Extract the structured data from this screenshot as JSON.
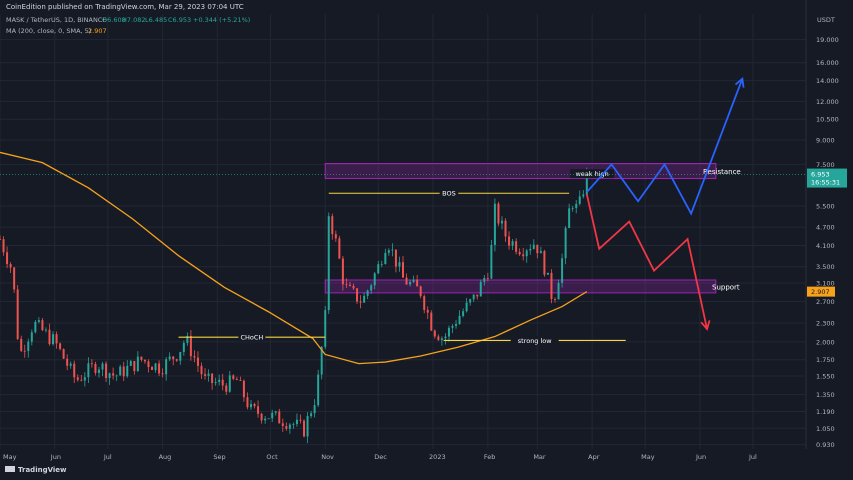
{
  "header": {
    "published_line": "CoinEdition published on TradingView.com, Mar 29, 2023 07:04 UTC",
    "symbol_line": {
      "pair": "MASK / TetherUS, 1D, BINANCE",
      "open": "O6.608",
      "high": "H7.082",
      "low": "L6.485",
      "close": "C6.953",
      "change": "+0.344 (+5.21%)"
    },
    "ma_line": {
      "label": "MA (200, close, 0, SMA, 5)",
      "value": "2.907"
    }
  },
  "footer": {
    "brand": "TradingView"
  },
  "colors": {
    "background": "#161a25",
    "up_candle": "#26a69a",
    "down_candle": "#ef5350",
    "ma_line": "#f7a21b",
    "level_line": "#f5d53c",
    "zone": "#9c27b0",
    "projection_up": "#2962ff",
    "projection_down": "#f23645",
    "price_tag": "#26a69a"
  },
  "chart_data": {
    "type": "candlestick",
    "y_axis": {
      "unit": "USDT",
      "scale": "log",
      "ticks": [
        "19.000",
        "16.000",
        "14.000",
        "12.000",
        "10.500",
        "9.000",
        "7.500",
        "6.953",
        "5.500",
        "4.700",
        "4.100",
        "3.500",
        "3.100",
        "2.907",
        "2.700",
        "2.300",
        "2.000",
        "1.750",
        "1.550",
        "1.350",
        "1.190",
        "1.050",
        "0.930"
      ],
      "range": [
        0.9,
        23.0
      ]
    },
    "x_axis": {
      "ticks": [
        "May",
        "Jun",
        "Jul",
        "Aug",
        "Sep",
        "Oct",
        "Nov",
        "Dec",
        "2023",
        "Feb",
        "Mar",
        "Apr",
        "May",
        "Jun",
        "Jul"
      ],
      "start": "2022-05-01",
      "end": "2023-07-31"
    },
    "price_tag": {
      "value": "6.953",
      "countdown": "16:55:31"
    },
    "ma_tag": {
      "value": "2.907"
    },
    "ma_200": [
      {
        "date": "2022-05-01",
        "value": 8.2
      },
      {
        "date": "2022-05-25",
        "value": 7.6
      },
      {
        "date": "2022-06-20",
        "value": 6.3
      },
      {
        "date": "2022-07-15",
        "value": 5.0
      },
      {
        "date": "2022-08-10",
        "value": 3.8
      },
      {
        "date": "2022-09-05",
        "value": 3.0
      },
      {
        "date": "2022-09-30",
        "value": 2.5
      },
      {
        "date": "2022-10-25",
        "value": 2.05
      },
      {
        "date": "2022-11-01",
        "value": 1.82
      },
      {
        "date": "2022-11-20",
        "value": 1.7
      },
      {
        "date": "2022-12-05",
        "value": 1.72
      },
      {
        "date": "2022-12-25",
        "value": 1.8
      },
      {
        "date": "2023-01-15",
        "value": 1.92
      },
      {
        "date": "2023-02-05",
        "value": 2.08
      },
      {
        "date": "2023-02-25",
        "value": 2.35
      },
      {
        "date": "2023-03-15",
        "value": 2.6
      },
      {
        "date": "2023-03-29",
        "value": 2.907
      }
    ],
    "close_path": [
      {
        "date": "2022-05-01",
        "value": 4.3
      },
      {
        "date": "2022-05-08",
        "value": 3.4
      },
      {
        "date": "2022-05-12",
        "value": 1.8
      },
      {
        "date": "2022-05-20",
        "value": 2.3
      },
      {
        "date": "2022-06-01",
        "value": 2.0
      },
      {
        "date": "2022-06-13",
        "value": 1.5
      },
      {
        "date": "2022-06-25",
        "value": 1.7
      },
      {
        "date": "2022-07-05",
        "value": 1.55
      },
      {
        "date": "2022-07-20",
        "value": 1.75
      },
      {
        "date": "2022-07-31",
        "value": 1.65
      },
      {
        "date": "2022-08-10",
        "value": 1.85
      },
      {
        "date": "2022-08-14",
        "value": 2.05
      },
      {
        "date": "2022-08-25",
        "value": 1.5
      },
      {
        "date": "2022-09-05",
        "value": 1.45
      },
      {
        "date": "2022-09-12",
        "value": 1.5
      },
      {
        "date": "2022-09-20",
        "value": 1.2
      },
      {
        "date": "2022-10-01",
        "value": 1.15
      },
      {
        "date": "2022-10-12",
        "value": 1.1
      },
      {
        "date": "2022-10-20",
        "value": 1.04
      },
      {
        "date": "2022-10-27",
        "value": 1.35
      },
      {
        "date": "2022-11-01",
        "value": 2.4
      },
      {
        "date": "2022-11-03",
        "value": 5.2
      },
      {
        "date": "2022-11-07",
        "value": 4.2
      },
      {
        "date": "2022-11-12",
        "value": 3.0
      },
      {
        "date": "2022-11-22",
        "value": 2.7
      },
      {
        "date": "2022-12-01",
        "value": 3.5
      },
      {
        "date": "2022-12-06",
        "value": 4.3
      },
      {
        "date": "2022-12-15",
        "value": 3.2
      },
      {
        "date": "2022-12-25",
        "value": 2.9
      },
      {
        "date": "2023-01-01",
        "value": 2.2
      },
      {
        "date": "2023-01-07",
        "value": 2.05
      },
      {
        "date": "2023-01-15",
        "value": 2.4
      },
      {
        "date": "2023-01-25",
        "value": 2.8
      },
      {
        "date": "2023-02-02",
        "value": 3.5
      },
      {
        "date": "2023-02-05",
        "value": 5.3
      },
      {
        "date": "2023-02-12",
        "value": 4.3
      },
      {
        "date": "2023-02-20",
        "value": 4.0
      },
      {
        "date": "2023-02-28",
        "value": 4.2
      },
      {
        "date": "2023-03-05",
        "value": 3.5
      },
      {
        "date": "2023-03-10",
        "value": 2.7
      },
      {
        "date": "2023-03-15",
        "value": 3.7
      },
      {
        "date": "2023-03-20",
        "value": 5.8
      },
      {
        "date": "2023-03-24",
        "value": 5.3
      },
      {
        "date": "2023-03-29",
        "value": 6.953
      }
    ],
    "annotations": [
      {
        "type": "level",
        "label": "CHoCH",
        "from": "2022-08-10",
        "to": "2022-11-01",
        "price": 2.07
      },
      {
        "type": "level",
        "label": "BOS",
        "from": "2022-11-03",
        "to": "2023-03-19",
        "price": 6.05
      },
      {
        "type": "level",
        "label": "weak high",
        "from": "2023-03-24",
        "to": "2023-04-09",
        "price": 7.0
      },
      {
        "type": "level",
        "label": "strong low",
        "from": "2023-01-07",
        "to": "2023-04-20",
        "price": 2.02
      },
      {
        "type": "zone",
        "label": "Resistance",
        "from": "2022-11-01",
        "to": "2023-06-10",
        "price_low": 6.75,
        "price_high": 7.55
      },
      {
        "type": "zone",
        "label": "Support",
        "from": "2022-11-01",
        "to": "2023-06-10",
        "price_low": 2.88,
        "price_high": 3.17
      }
    ],
    "projection_up": [
      {
        "date": "2023-03-29",
        "value": 6.1
      },
      {
        "date": "2023-04-12",
        "value": 7.5
      },
      {
        "date": "2023-04-27",
        "value": 5.7
      },
      {
        "date": "2023-05-12",
        "value": 7.5
      },
      {
        "date": "2023-05-27",
        "value": 5.2
      },
      {
        "date": "2023-06-25",
        "value": 14.2
      }
    ],
    "projection_down": [
      {
        "date": "2023-03-29",
        "value": 6.0
      },
      {
        "date": "2023-04-05",
        "value": 4.0
      },
      {
        "date": "2023-04-22",
        "value": 4.9
      },
      {
        "date": "2023-05-06",
        "value": 3.4
      },
      {
        "date": "2023-05-25",
        "value": 4.3
      },
      {
        "date": "2023-06-05",
        "value": 2.2
      }
    ]
  }
}
